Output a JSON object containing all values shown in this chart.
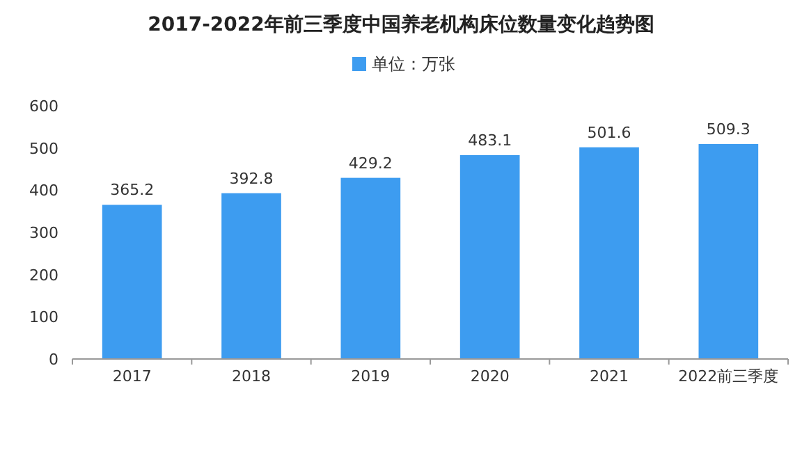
{
  "chart_data": {
    "type": "bar",
    "title": "2017-2022年前三季度中国养老机构床位数量变化趋势图",
    "categories": [
      "2017",
      "2018",
      "2019",
      "2020",
      "2021",
      "2022前三季度"
    ],
    "series": [
      {
        "name": "单位：万张",
        "color": "#3d9cf0",
        "values": [
          365.2,
          392.8,
          429.2,
          483.1,
          501.6,
          509.3
        ]
      }
    ],
    "ylim": [
      0,
      600
    ],
    "yticks": [
      0,
      100,
      200,
      300,
      400,
      500,
      600
    ],
    "data_labels": true,
    "legend": "top",
    "grid": false
  }
}
